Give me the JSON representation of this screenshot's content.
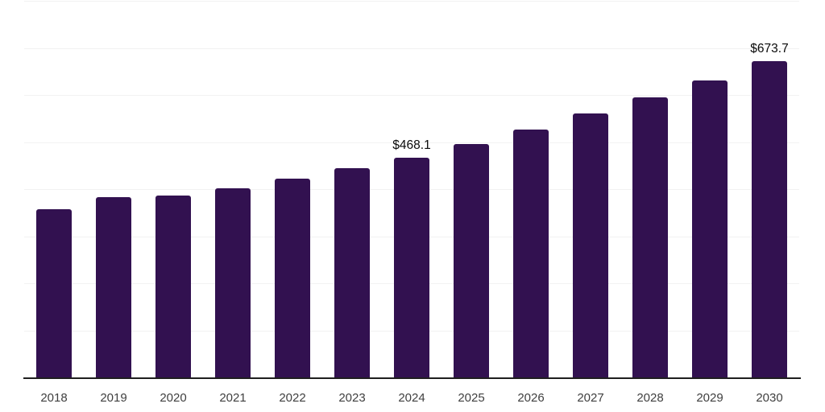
{
  "chart_data": {
    "type": "bar",
    "title": "",
    "xlabel": "",
    "ylabel": "",
    "categories": [
      "2018",
      "2019",
      "2020",
      "2021",
      "2022",
      "2023",
      "2024",
      "2025",
      "2026",
      "2027",
      "2028",
      "2029",
      "2030"
    ],
    "values": [
      359,
      385,
      388,
      403,
      424,
      446,
      468.1,
      497,
      529,
      562,
      596,
      632,
      673.7
    ],
    "data_labels": {
      "2024": "$468.1",
      "2030": "$673.7"
    },
    "ylim": [
      0,
      800
    ],
    "grid_step": 100,
    "grid": "horizontal-only",
    "legend": "none",
    "y_tick_labels": "none",
    "bar_color": "#321150",
    "gridline_color": "#f2f2f2",
    "axis_line_color": "#1f1f1f",
    "x_label_color": "#3f3f3f",
    "data_label_color": "#0a0a0a"
  }
}
